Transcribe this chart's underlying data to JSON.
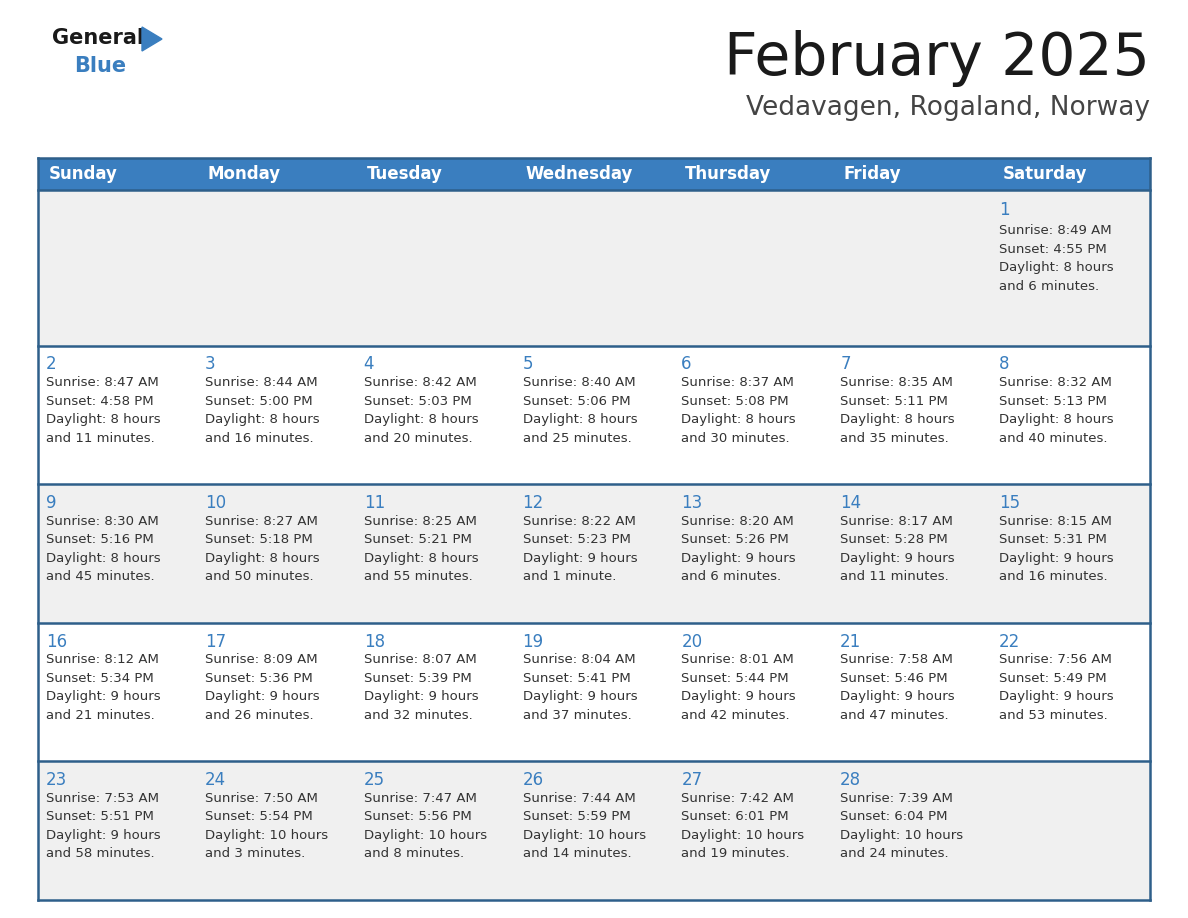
{
  "title": "February 2025",
  "subtitle": "Vedavagen, Rogaland, Norway",
  "days_of_week": [
    "Sunday",
    "Monday",
    "Tuesday",
    "Wednesday",
    "Thursday",
    "Friday",
    "Saturday"
  ],
  "header_bg": "#3a7ebf",
  "header_text": "#ffffff",
  "row0_bg": "#f0f0f0",
  "row1_bg": "#ffffff",
  "row2_bg": "#f0f0f0",
  "row3_bg": "#ffffff",
  "row4_bg": "#f0f0f0",
  "border_color": "#2e5f8a",
  "day_number_color": "#3a7ebf",
  "text_color": "#333333",
  "title_color": "#1a1a1a",
  "subtitle_color": "#444444",
  "calendar_data": [
    [
      null,
      null,
      null,
      null,
      null,
      null,
      {
        "day": 1,
        "sunrise": "8:49 AM",
        "sunset": "4:55 PM",
        "daylight": "8 hours\nand 6 minutes."
      }
    ],
    [
      {
        "day": 2,
        "sunrise": "8:47 AM",
        "sunset": "4:58 PM",
        "daylight": "8 hours\nand 11 minutes."
      },
      {
        "day": 3,
        "sunrise": "8:44 AM",
        "sunset": "5:00 PM",
        "daylight": "8 hours\nand 16 minutes."
      },
      {
        "day": 4,
        "sunrise": "8:42 AM",
        "sunset": "5:03 PM",
        "daylight": "8 hours\nand 20 minutes."
      },
      {
        "day": 5,
        "sunrise": "8:40 AM",
        "sunset": "5:06 PM",
        "daylight": "8 hours\nand 25 minutes."
      },
      {
        "day": 6,
        "sunrise": "8:37 AM",
        "sunset": "5:08 PM",
        "daylight": "8 hours\nand 30 minutes."
      },
      {
        "day": 7,
        "sunrise": "8:35 AM",
        "sunset": "5:11 PM",
        "daylight": "8 hours\nand 35 minutes."
      },
      {
        "day": 8,
        "sunrise": "8:32 AM",
        "sunset": "5:13 PM",
        "daylight": "8 hours\nand 40 minutes."
      }
    ],
    [
      {
        "day": 9,
        "sunrise": "8:30 AM",
        "sunset": "5:16 PM",
        "daylight": "8 hours\nand 45 minutes."
      },
      {
        "day": 10,
        "sunrise": "8:27 AM",
        "sunset": "5:18 PM",
        "daylight": "8 hours\nand 50 minutes."
      },
      {
        "day": 11,
        "sunrise": "8:25 AM",
        "sunset": "5:21 PM",
        "daylight": "8 hours\nand 55 minutes."
      },
      {
        "day": 12,
        "sunrise": "8:22 AM",
        "sunset": "5:23 PM",
        "daylight": "9 hours\nand 1 minute."
      },
      {
        "day": 13,
        "sunrise": "8:20 AM",
        "sunset": "5:26 PM",
        "daylight": "9 hours\nand 6 minutes."
      },
      {
        "day": 14,
        "sunrise": "8:17 AM",
        "sunset": "5:28 PM",
        "daylight": "9 hours\nand 11 minutes."
      },
      {
        "day": 15,
        "sunrise": "8:15 AM",
        "sunset": "5:31 PM",
        "daylight": "9 hours\nand 16 minutes."
      }
    ],
    [
      {
        "day": 16,
        "sunrise": "8:12 AM",
        "sunset": "5:34 PM",
        "daylight": "9 hours\nand 21 minutes."
      },
      {
        "day": 17,
        "sunrise": "8:09 AM",
        "sunset": "5:36 PM",
        "daylight": "9 hours\nand 26 minutes."
      },
      {
        "day": 18,
        "sunrise": "8:07 AM",
        "sunset": "5:39 PM",
        "daylight": "9 hours\nand 32 minutes."
      },
      {
        "day": 19,
        "sunrise": "8:04 AM",
        "sunset": "5:41 PM",
        "daylight": "9 hours\nand 37 minutes."
      },
      {
        "day": 20,
        "sunrise": "8:01 AM",
        "sunset": "5:44 PM",
        "daylight": "9 hours\nand 42 minutes."
      },
      {
        "day": 21,
        "sunrise": "7:58 AM",
        "sunset": "5:46 PM",
        "daylight": "9 hours\nand 47 minutes."
      },
      {
        "day": 22,
        "sunrise": "7:56 AM",
        "sunset": "5:49 PM",
        "daylight": "9 hours\nand 53 minutes."
      }
    ],
    [
      {
        "day": 23,
        "sunrise": "7:53 AM",
        "sunset": "5:51 PM",
        "daylight": "9 hours\nand 58 minutes."
      },
      {
        "day": 24,
        "sunrise": "7:50 AM",
        "sunset": "5:54 PM",
        "daylight": "10 hours\nand 3 minutes."
      },
      {
        "day": 25,
        "sunrise": "7:47 AM",
        "sunset": "5:56 PM",
        "daylight": "10 hours\nand 8 minutes."
      },
      {
        "day": 26,
        "sunrise": "7:44 AM",
        "sunset": "5:59 PM",
        "daylight": "10 hours\nand 14 minutes."
      },
      {
        "day": 27,
        "sunrise": "7:42 AM",
        "sunset": "6:01 PM",
        "daylight": "10 hours\nand 19 minutes."
      },
      {
        "day": 28,
        "sunrise": "7:39 AM",
        "sunset": "6:04 PM",
        "daylight": "10 hours\nand 24 minutes."
      },
      null
    ]
  ],
  "row_bg_colors": [
    "#f0f0f0",
    "#ffffff",
    "#f0f0f0",
    "#ffffff",
    "#f0f0f0"
  ]
}
